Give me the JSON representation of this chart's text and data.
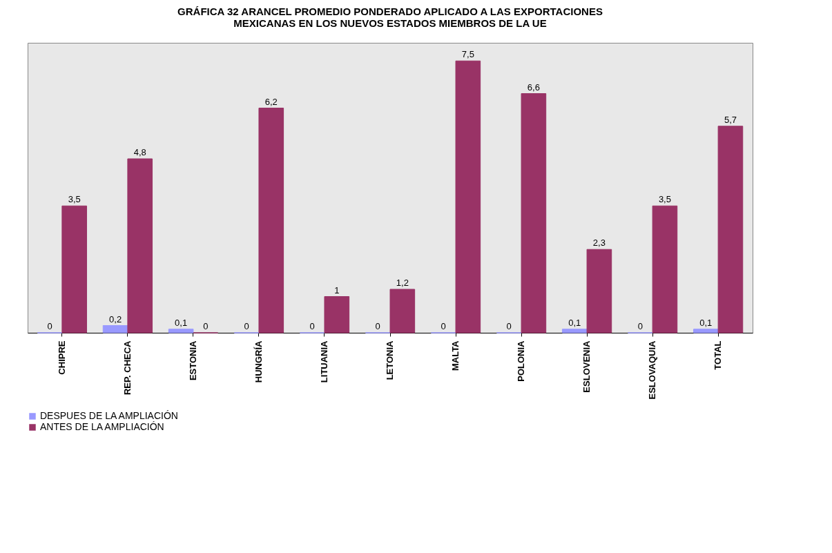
{
  "chart_data": {
    "type": "bar",
    "title": "GRÁFICA 32 ARANCEL PROMEDIO PONDERADO APLICADO A LAS EXPORTACIONES MEXICANAS EN LOS NUEVOS ESTADOS MIEMBROS DE LA UE",
    "categories": [
      "CHIPRE",
      "REP. CHECA",
      "ESTONIA",
      "HUNGRÍA",
      "LITUANIA",
      "LETONIA",
      "MALTA",
      "POLONIA",
      "ESLOVENIA",
      "ESLOVAQUIA",
      "TOTAL"
    ],
    "series": [
      {
        "name": "DESPUES DE LA AMPLIACIÓN",
        "color": "#9999ff",
        "values": [
          0,
          0.2,
          0.1,
          0,
          0,
          0,
          0,
          0,
          0.1,
          0,
          0.1
        ],
        "value_labels": [
          "0",
          "0,2",
          "0,1",
          "0",
          "0",
          "0",
          "0",
          "0",
          "0,1",
          "0",
          "0,1"
        ]
      },
      {
        "name": "ANTES DE LA AMPLIACIÓN",
        "color": "#993366",
        "values": [
          3.5,
          4.8,
          0,
          6.2,
          1,
          1.2,
          7.5,
          6.6,
          2.3,
          3.5,
          5.7
        ],
        "value_labels": [
          "3,5",
          "4,8",
          "0",
          "6,2",
          "1",
          "1,2",
          "7,5",
          "6,6",
          "2,3",
          "3,5",
          "5,7"
        ]
      }
    ],
    "legend": "bottom left"
  }
}
